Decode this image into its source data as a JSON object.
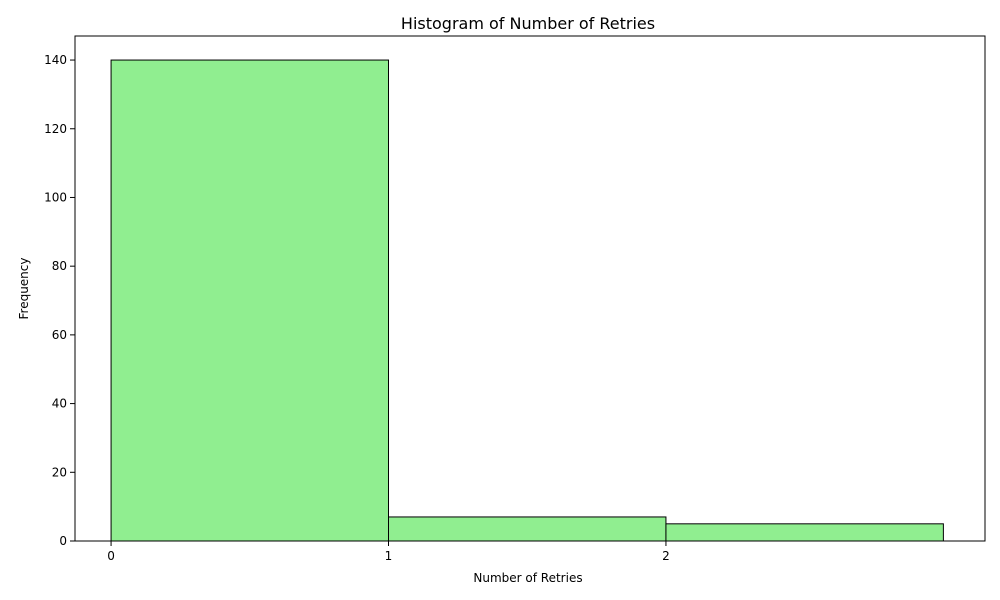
{
  "chart_data": {
    "type": "bar",
    "title": "Histogram of Number of Retries",
    "xlabel": "Number of Retries",
    "ylabel": "Frequency",
    "bins": [
      {
        "start": 0,
        "end": 1,
        "value": 140
      },
      {
        "start": 1,
        "end": 2,
        "value": 7
      },
      {
        "start": 2,
        "end": 3,
        "value": 5
      }
    ],
    "xlim": [
      -0.13,
      3.15
    ],
    "ylim": [
      0,
      147
    ],
    "xticks": [
      0,
      1,
      2
    ],
    "yticks": [
      0,
      20,
      40,
      60,
      80,
      100,
      120,
      140
    ],
    "colors": {
      "bar_fill": "#90EE90",
      "bar_edge": "#000000"
    },
    "grid": false,
    "legend": "none"
  }
}
